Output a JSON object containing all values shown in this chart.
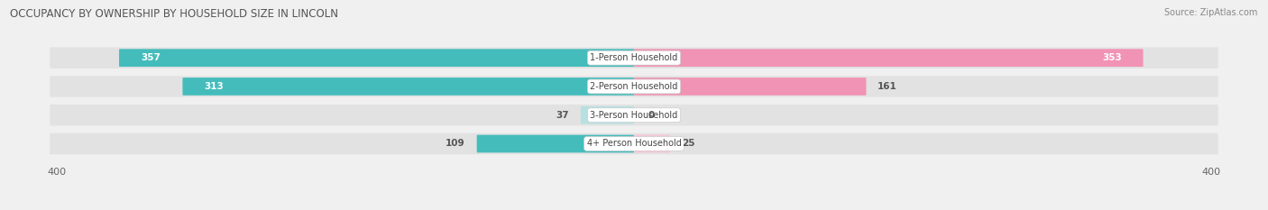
{
  "title": "OCCUPANCY BY OWNERSHIP BY HOUSEHOLD SIZE IN LINCOLN",
  "source": "Source: ZipAtlas.com",
  "categories": [
    "1-Person Household",
    "2-Person Household",
    "3-Person Household",
    "4+ Person Household"
  ],
  "owner_values": [
    357,
    313,
    37,
    109
  ],
  "renter_values": [
    353,
    161,
    0,
    25
  ],
  "owner_color": "#45BCBC",
  "renter_color": "#F093B4",
  "owner_color_light": "#B8E0E0",
  "renter_color_light": "#F7C4D6",
  "axis_max": 400,
  "background_color": "#f0f0f0",
  "bar_background": "#e2e2e2",
  "bar_height": 0.62,
  "figsize": [
    14.06,
    2.33
  ],
  "dpi": 100
}
